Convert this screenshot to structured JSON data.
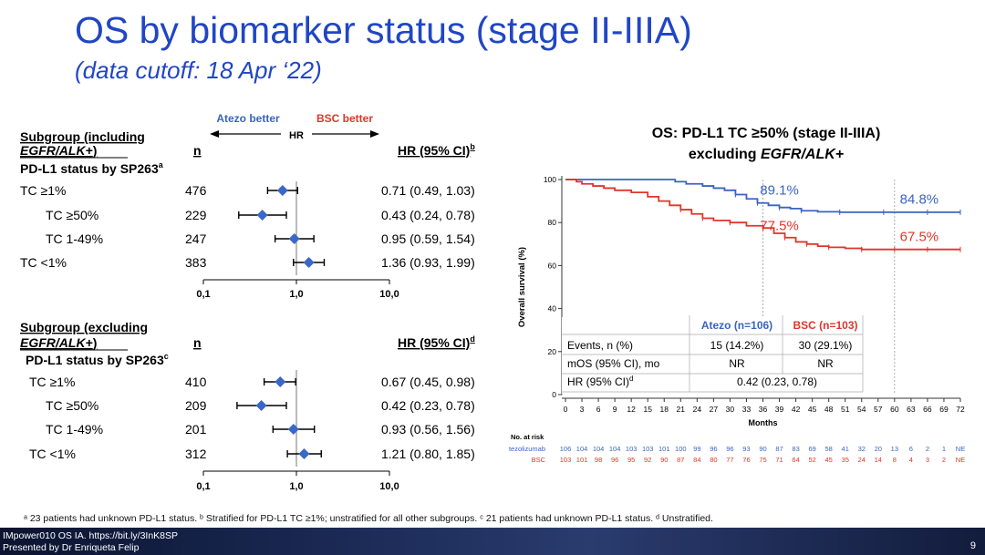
{
  "title": "OS by biomarker status (stage II-IIIA)",
  "subtitle": "(data cutoff: 18 Apr ‘22)",
  "forest": {
    "direction": {
      "left": "Atezo better",
      "mid": "HR",
      "right": "BSC better"
    },
    "n_label": "n",
    "axis_ticks": [
      "0,1",
      "1,0",
      "10,0"
    ],
    "panels": [
      {
        "header_line1": "Subgroup (including",
        "header_line2_italic": "EGFR/ALK+",
        "header_line2_end": ")",
        "status_label": "PD-L1 status by SP263",
        "status_sup": "a",
        "hr_header": "HR (95% CI)",
        "hr_sup": "b",
        "rows": [
          {
            "label": "TC ≥1%",
            "n": "476",
            "hr": 0.71,
            "lo": 0.49,
            "hi": 1.03,
            "text": "0.71 (0.49, 1.03)"
          },
          {
            "label": "TC ≥50%",
            "n": "229",
            "hr": 0.43,
            "lo": 0.24,
            "hi": 0.78,
            "text": "0.43 (0.24, 0.78)"
          },
          {
            "label": "TC 1-49%",
            "n": "247",
            "hr": 0.95,
            "lo": 0.59,
            "hi": 1.54,
            "text": "0.95 (0.59, 1.54)"
          },
          {
            "label": "TC <1%",
            "n": "383",
            "hr": 1.36,
            "lo": 0.93,
            "hi": 1.99,
            "text": "1.36 (0.93, 1.99)"
          }
        ]
      },
      {
        "header_line1": "Subgroup (excluding",
        "header_line2_italic": "EGFR/ALK+",
        "header_line2_end": ")",
        "status_label": "PD-L1 status by SP263",
        "status_sup": "c",
        "hr_header": "HR (95% CI)",
        "hr_sup": "d",
        "rows": [
          {
            "label": "TC ≥1%",
            "n": "410",
            "hr": 0.67,
            "lo": 0.45,
            "hi": 0.98,
            "text": "0.67 (0.45, 0.98)"
          },
          {
            "label": "TC ≥50%",
            "n": "209",
            "hr": 0.42,
            "lo": 0.23,
            "hi": 0.78,
            "text": "0.42 (0.23, 0.78)"
          },
          {
            "label": "TC 1-49%",
            "n": "201",
            "hr": 0.93,
            "lo": 0.56,
            "hi": 1.56,
            "text": "0.93 (0.56, 1.56)"
          },
          {
            "label": "TC <1%",
            "n": "312",
            "hr": 1.21,
            "lo": 0.8,
            "hi": 1.85,
            "text": "1.21 (0.80, 1.85)"
          }
        ]
      }
    ]
  },
  "chart_data": {
    "type": "line",
    "title_line1": "OS: PD-L1 TC ≥50% (stage II-IIIA)",
    "title_line2_prefix": "excluding ",
    "title_line2_italic": "EGFR/ALK+",
    "ylabel": "Overall survival (%)",
    "xlabel": "Months",
    "ylim": [
      0,
      100
    ],
    "xlim": [
      0,
      72
    ],
    "yticks": [
      0,
      20,
      40,
      60,
      80,
      100
    ],
    "xticks": [
      0,
      3,
      6,
      9,
      12,
      15,
      18,
      21,
      24,
      27,
      30,
      33,
      36,
      39,
      42,
      45,
      48,
      51,
      54,
      57,
      60,
      63,
      66,
      69,
      72
    ],
    "landmarks": [
      36,
      60
    ],
    "series": [
      {
        "name": "Atezo",
        "color": "#3a64c0",
        "x": [
          0,
          2,
          6,
          12,
          17,
          20,
          22,
          25,
          27,
          29,
          31,
          33,
          35,
          37,
          39,
          41,
          43,
          46,
          50,
          54,
          58,
          62,
          66,
          70,
          72
        ],
        "y": [
          100,
          100,
          100,
          100,
          100,
          99,
          98,
          97,
          96,
          95,
          93,
          91,
          89.1,
          88,
          87,
          86.5,
          85.5,
          85,
          84.8,
          84.8,
          84.8,
          84.8,
          84.8,
          84.8,
          84.8
        ]
      },
      {
        "name": "BSC",
        "color": "#e0352b",
        "x": [
          0,
          2,
          3,
          5,
          7,
          9,
          12,
          15,
          17,
          19,
          21,
          23,
          25,
          27,
          30,
          33,
          36,
          38,
          40,
          42,
          44,
          46,
          48,
          51,
          54,
          57,
          60,
          63,
          66,
          70,
          72
        ],
        "y": [
          100,
          99,
          98,
          97,
          96,
          95,
          94,
          92,
          90,
          88,
          86,
          84,
          82,
          81,
          80,
          78.5,
          77.5,
          75,
          73,
          71,
          70,
          69,
          68.5,
          68,
          67.5,
          67.5,
          67.5,
          67.5,
          67.5,
          67.5,
          67.5
        ]
      }
    ],
    "annotations": [
      {
        "text": "89.1%",
        "color": "#3a64c0"
      },
      {
        "text": "84.8%",
        "color": "#3a64c0"
      },
      {
        "text": "77.5%",
        "color": "#e0352b"
      },
      {
        "text": "67.5%",
        "color": "#e0352b"
      }
    ],
    "table": {
      "col_atezo": "Atezo (n=106)",
      "col_bsc": "BSC (n=103)",
      "rows": [
        {
          "label": "Events, n (%)",
          "atezo": "15 (14.2%)",
          "bsc": "30 (29.1%)"
        },
        {
          "label": "mOS (95% CI), mo",
          "atezo": "NR",
          "bsc": "NR"
        },
        {
          "label": "HR (95% CI)",
          "sup": "d",
          "combined": "0.42 (0.23, 0.78)"
        }
      ]
    },
    "at_risk": {
      "title": "No. at risk",
      "rows": [
        {
          "label": "Atezolizumab",
          "color": "#3a64c0",
          "values": [
            "106",
            "104",
            "104",
            "104",
            "103",
            "103",
            "101",
            "100",
            "99",
            "96",
            "96",
            "93",
            "90",
            "87",
            "83",
            "69",
            "58",
            "41",
            "32",
            "20",
            "13",
            "6",
            "2",
            "1",
            "NE"
          ]
        },
        {
          "label": "BSC",
          "color": "#e0352b",
          "values": [
            "103",
            "101",
            "98",
            "96",
            "95",
            "92",
            "90",
            "87",
            "84",
            "80",
            "77",
            "76",
            "75",
            "71",
            "64",
            "52",
            "45",
            "35",
            "24",
            "14",
            "8",
            "4",
            "3",
            "2",
            "NE"
          ]
        }
      ]
    }
  },
  "footnote": "ᵃ 23 patients had unknown PD-L1 status. ᵇ Stratified for PD-L1 TC ≥1%; unstratified for all other subgroups. ᶜ 21 patients had unknown PD-L1 status. ᵈ Unstratified.",
  "footer": {
    "line1": "IMpower010 OS IA. https://bit.ly/3InK8SP",
    "line2": "Presented by Dr Enriqueta Felip",
    "page": "9"
  },
  "colors": {
    "title": "#2146c4",
    "atezo": "#3a64c0",
    "bsc": "#e0352b",
    "diamond": "#3a68c8"
  }
}
